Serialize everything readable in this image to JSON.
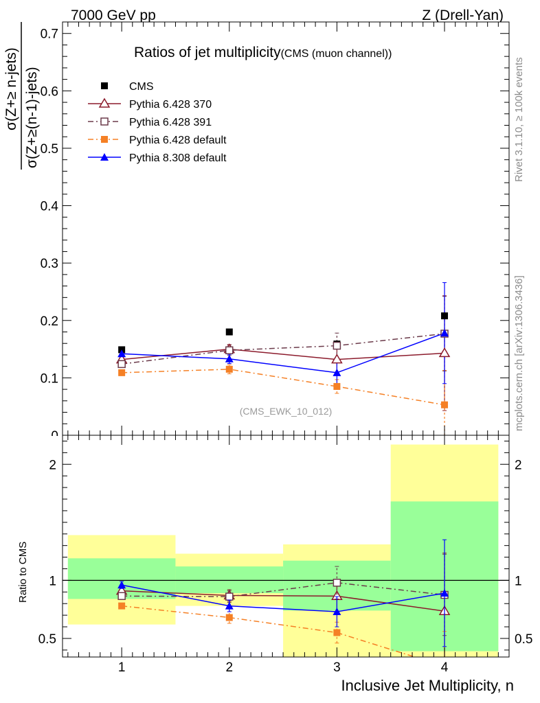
{
  "header": {
    "left": "7000 GeV pp",
    "right": "Z (Drell-Yan)"
  },
  "side_labels": {
    "rivet": "Rivet 3.1.10, ≥ 100k events",
    "mcplots": "mcplots.cern.ch [arXiv:1306.3436]"
  },
  "chart_data": [
    {
      "type": "scatter",
      "title_main": "Ratios of jet multiplicity",
      "title_sub": "(CMS (muon channel))",
      "ylabel_num": "σ(Z+≥ n-jets)",
      "ylabel_den": "σ(Z+≥(n-1)-jets)",
      "analysis_tag": "(CMS_EWK_10_012)",
      "xlim": [
        0.45,
        4.6
      ],
      "ylim": [
        0,
        0.72
      ],
      "yticks": [
        0.1,
        0.2,
        0.3,
        0.4,
        0.5,
        0.6,
        0.7
      ],
      "ytick_labels": [
        "0.1",
        "0.2",
        "0.3",
        "0.4",
        "0.5",
        "0.6",
        "0.7"
      ],
      "bottom_tick_label": "0",
      "x": [
        1,
        2,
        3,
        4
      ],
      "series": [
        {
          "name": "CMS",
          "color": "#000000",
          "marker": "square-filled",
          "line": "none",
          "values": [
            0.149,
            0.18,
            0.159,
            0.208
          ]
        },
        {
          "name": "Pythia 6.428 370",
          "color": "#8b1a2b",
          "marker": "triangle-open",
          "line": "solid",
          "values": [
            0.132,
            0.15,
            0.132,
            0.143
          ],
          "err": [
            0.004,
            0.008,
            0.022,
            0.1
          ]
        },
        {
          "name": "Pythia 6.428 391",
          "color": "#6b3a4a",
          "marker": "square-open",
          "line": "dashdot",
          "values": [
            0.124,
            0.148,
            0.156,
            0.177
          ],
          "err": [
            0.004,
            0.009,
            0.022,
            0.065
          ]
        },
        {
          "name": "Pythia 6.428 default",
          "color": "#f58025",
          "marker": "square-filled",
          "line": "dashdot",
          "values": [
            0.109,
            0.115,
            0.085,
            0.053
          ],
          "err": [
            0.003,
            0.008,
            0.012,
            0.06
          ]
        },
        {
          "name": "Pythia 8.308 default",
          "color": "#0000ff",
          "marker": "triangle-filled",
          "line": "solid",
          "values": [
            0.142,
            0.133,
            0.109,
            0.178
          ],
          "err": [
            0.004,
            0.008,
            0.02,
            0.088
          ]
        }
      ]
    },
    {
      "type": "scatter",
      "ylabel": "Ratio to CMS",
      "xlabel": "Inclusive Jet Multiplicity, n",
      "xlim": [
        0.45,
        4.6
      ],
      "ylim": [
        0.34,
        2.25
      ],
      "yticks": [
        0.5,
        1,
        2
      ],
      "ytick_labels": [
        "0.5",
        "1",
        "2"
      ],
      "xticks": [
        1,
        2,
        3,
        4
      ],
      "xtick_labels": [
        "1",
        "2",
        "3",
        "4"
      ],
      "bands": [
        {
          "x": [
            0.5,
            1.5
          ],
          "yellow": [
            0.62,
            1.39
          ],
          "green": [
            0.84,
            1.19
          ]
        },
        {
          "x": [
            1.5,
            2.5
          ],
          "yellow": [
            0.78,
            1.23
          ],
          "green": [
            0.89,
            1.12
          ]
        },
        {
          "x": [
            2.5,
            3.5
          ],
          "yellow": [
            0.34,
            1.31
          ],
          "green": [
            0.74,
            1.17
          ]
        },
        {
          "x": [
            3.5,
            4.5
          ],
          "yellow": [
            0.34,
            2.17
          ],
          "green": [
            0.39,
            1.68
          ]
        }
      ],
      "series": [
        {
          "name": "Pythia 6.428 370",
          "values": [
            0.91,
            0.87,
            0.865,
            0.735
          ],
          "err": [
            0.03,
            0.05,
            0.14,
            0.5
          ]
        },
        {
          "name": "Pythia 6.428 391",
          "values": [
            0.865,
            0.86,
            0.98,
            0.875
          ],
          "err": [
            0.03,
            0.05,
            0.14,
            0.35
          ]
        },
        {
          "name": "Pythia 6.428 default",
          "values": [
            0.78,
            0.68,
            0.55,
            0.26
          ],
          "err": [
            0.02,
            0.05,
            0.09,
            0.3
          ]
        },
        {
          "name": "Pythia 8.308 default",
          "values": [
            0.96,
            0.78,
            0.73,
            0.89
          ],
          "err": [
            0.03,
            0.05,
            0.13,
            0.46
          ]
        }
      ]
    }
  ]
}
